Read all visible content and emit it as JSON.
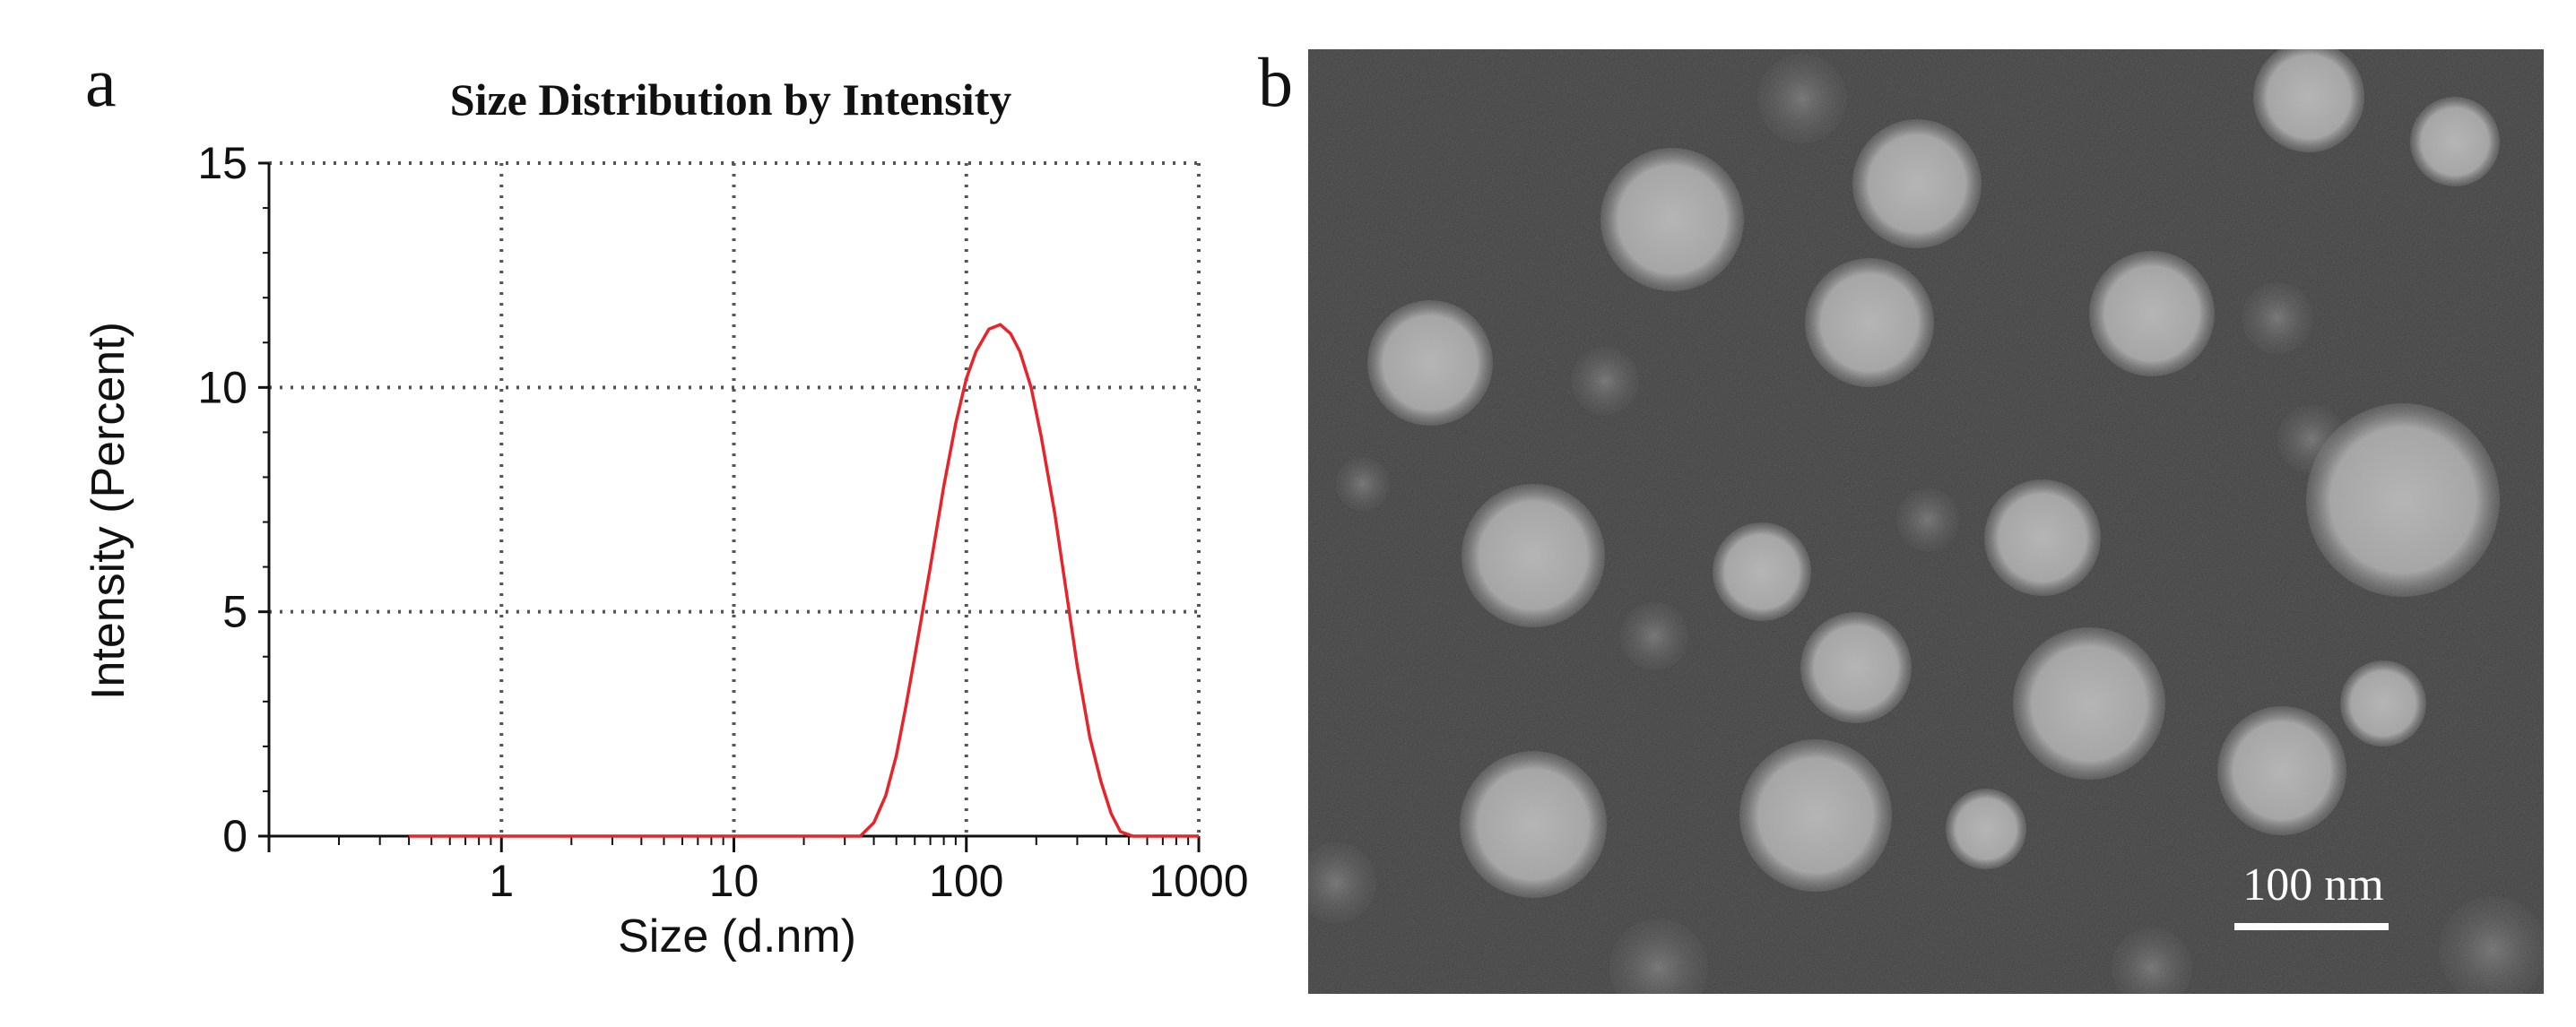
{
  "panels": {
    "a_label": "a",
    "b_label": "b"
  },
  "chart_data": {
    "type": "line",
    "title": "Size Distribution by Intensity",
    "xlabel": "Size (d.nm)",
    "ylabel": "Intensity (Percent)",
    "xscale": "log",
    "xlim": [
      0.1,
      1000
    ],
    "ylim": [
      0,
      15
    ],
    "x_ticks": [
      1,
      10,
      100,
      1000
    ],
    "x_tick_labels": [
      "1",
      "10",
      "100",
      "1000"
    ],
    "y_ticks": [
      0,
      5,
      10,
      15
    ],
    "y_tick_labels": [
      "0",
      "5",
      "10",
      "15"
    ],
    "grid": "dotted",
    "series": [
      {
        "color": "#e8242b",
        "x": [
          0.4,
          1,
          10,
          35,
          40,
          45,
          50,
          55,
          60,
          70,
          80,
          90,
          100,
          110,
          125,
          140,
          155,
          170,
          190,
          210,
          240,
          270,
          300,
          340,
          380,
          420,
          460,
          520,
          600,
          1000
        ],
        "y": [
          0,
          0,
          0,
          0,
          0.3,
          0.9,
          1.8,
          2.9,
          4.0,
          6.0,
          7.8,
          9.2,
          10.2,
          10.8,
          11.3,
          11.4,
          11.2,
          10.8,
          10.0,
          8.9,
          7.2,
          5.4,
          3.8,
          2.2,
          1.2,
          0.5,
          0.1,
          0,
          0,
          0
        ]
      }
    ]
  },
  "micrograph": {
    "scale_bar_label": "100 nm"
  }
}
